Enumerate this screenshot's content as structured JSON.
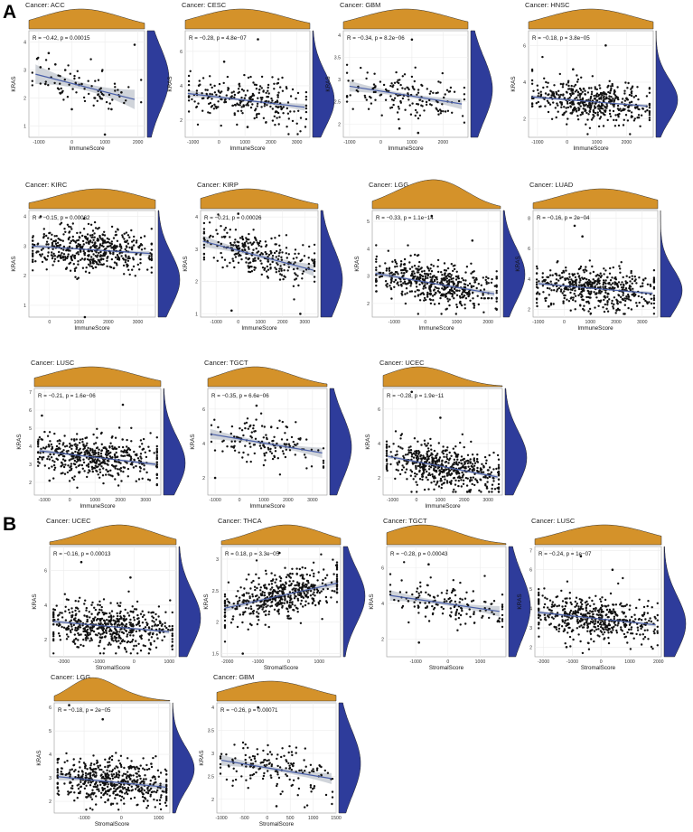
{
  "figure": {
    "colors": {
      "density_top": "#D4922A",
      "density_right": "#2E3C9B",
      "fit_line": "#4A5FA8",
      "ci_band": "#C8CCD3",
      "points": "#111111",
      "plot_border": "#9a9a9a"
    }
  },
  "chart_data": [
    {
      "type": "scatter",
      "section": "A",
      "title": "Cancer: ACC",
      "stat": "R = −0.42, p = 0.00015",
      "xlabel": "ImmuneScore",
      "ylabel": "KRAS",
      "xlim": [
        -1300,
        2200
      ],
      "ylim": [
        0.6,
        4.4
      ],
      "xticks": [
        -1000,
        0,
        1000,
        2000
      ],
      "yticks": [
        1,
        2,
        3,
        4
      ],
      "fit": [
        [
          -1100,
          2.85
        ],
        [
          1900,
          1.95
        ]
      ],
      "ci": 0.35,
      "n": 78,
      "seed": 11,
      "points": [
        [
          -1050,
          3.4
        ],
        [
          -950,
          3.1
        ],
        [
          -800,
          2.5
        ],
        [
          -700,
          3.6
        ],
        [
          -500,
          3.2
        ],
        [
          -300,
          2.2
        ],
        [
          -200,
          3.0
        ],
        [
          0,
          1.6
        ],
        [
          300,
          2.5
        ],
        [
          700,
          2.0
        ],
        [
          1000,
          0.7
        ],
        [
          1200,
          1.6
        ],
        [
          1500,
          2.2
        ],
        [
          1900,
          3.9
        ]
      ],
      "top_peaks": [
        [
          0.45,
          1.0,
          0.35
        ]
      ],
      "right_peaks": [
        [
          0.55,
          1.0,
          0.3
        ]
      ]
    },
    {
      "type": "scatter",
      "section": "A",
      "title": "Cancer: CESC",
      "stat": "R = −0.28, p = 4.8e−07",
      "xlabel": "ImmuneScore",
      "ylabel": "KRAS",
      "xlim": [
        -1300,
        3500
      ],
      "ylim": [
        1.0,
        7.2
      ],
      "xticks": [
        -1000,
        0,
        1000,
        2000,
        3000
      ],
      "yticks": [
        2,
        4,
        6
      ],
      "fit": [
        [
          -1200,
          3.55
        ],
        [
          3300,
          2.75
        ]
      ],
      "ci": 0.2,
      "n": 260,
      "seed": 22,
      "points": [
        [
          1500,
          6.7
        ],
        [
          200,
          5.4
        ],
        [
          1100,
          1.6
        ]
      ],
      "top_peaks": [
        [
          0.45,
          1.0,
          0.35
        ]
      ],
      "right_peaks": [
        [
          0.35,
          1.0,
          0.25
        ]
      ]
    },
    {
      "type": "scatter",
      "section": "A",
      "title": "Cancer: GBM",
      "stat": "R = −0.34, p = 8.2e−06",
      "xlabel": "ImmuneScore",
      "ylabel": "KRAS",
      "xlim": [
        -1200,
        2800
      ],
      "ylim": [
        1.7,
        4.1
      ],
      "xticks": [
        -1000,
        0,
        1000,
        2000
      ],
      "yticks": [
        2.0,
        2.5,
        3.0,
        3.5,
        4.0
      ],
      "fit": [
        [
          -1000,
          2.85
        ],
        [
          2600,
          2.45
        ]
      ],
      "ci": 0.12,
      "n": 160,
      "seed": 33,
      "points": [
        [
          1000,
          3.9
        ],
        [
          1200,
          1.8
        ],
        [
          600,
          1.9
        ]
      ],
      "top_peaks": [
        [
          0.5,
          1.0,
          0.35
        ]
      ],
      "right_peaks": [
        [
          0.45,
          1.0,
          0.3
        ]
      ]
    },
    {
      "type": "scatter",
      "section": "A",
      "title": "Cancer: HNSC",
      "stat": "R = −0.18, p = 3.8e−05",
      "xlabel": "ImmuneScore",
      "ylabel": "KRAS",
      "xlim": [
        -1300,
        2900
      ],
      "ylim": [
        1.0,
        6.8
      ],
      "xticks": [
        -1000,
        0,
        1000,
        2000
      ],
      "yticks": [
        2,
        4,
        6
      ],
      "fit": [
        [
          -1200,
          3.2
        ],
        [
          2700,
          2.7
        ]
      ],
      "ci": 0.1,
      "n": 480,
      "seed": 44,
      "points": [
        [
          1300,
          6.0
        ],
        [
          200,
          4.7
        ]
      ],
      "top_peaks": [
        [
          0.5,
          1.0,
          0.35
        ]
      ],
      "right_peaks": [
        [
          0.35,
          1.0,
          0.2
        ]
      ]
    },
    {
      "type": "scatter",
      "section": "A",
      "title": "Cancer: KIRC",
      "stat": "R = −0.15, p = 0.00062",
      "xlabel": "ImmuneScore",
      "ylabel": "KRAS",
      "xlim": [
        -700,
        3600
      ],
      "ylim": [
        0.6,
        4.2
      ],
      "xticks": [
        0,
        1000,
        2000,
        3000
      ],
      "yticks": [
        1,
        2,
        3,
        4
      ],
      "fit": [
        [
          -600,
          3.0
        ],
        [
          3400,
          2.75
        ]
      ],
      "ci": 0.08,
      "n": 500,
      "seed": 55,
      "points": [
        [
          -300,
          4.0
        ],
        [
          1200,
          0.6
        ]
      ],
      "top_peaks": [
        [
          0.55,
          1.0,
          0.35
        ]
      ],
      "right_peaks": [
        [
          0.35,
          1.0,
          0.25
        ]
      ]
    },
    {
      "type": "scatter",
      "section": "A",
      "title": "Cancer: KIRP",
      "stat": "R = −0.21, p = 0.00026",
      "xlabel": "ImmuneScore",
      "ylabel": "KRAS",
      "xlim": [
        -1700,
        3600
      ],
      "ylim": [
        0.9,
        4.2
      ],
      "xticks": [
        -1000,
        0,
        1000,
        2000,
        3000
      ],
      "yticks": [
        1,
        2,
        3,
        4
      ],
      "fit": [
        [
          -1600,
          3.25
        ],
        [
          3400,
          2.35
        ]
      ],
      "ci": 0.18,
      "n": 290,
      "seed": 66,
      "points": [
        [
          0,
          4.1
        ],
        [
          2800,
          1.0
        ],
        [
          -300,
          1.1
        ]
      ],
      "top_peaks": [
        [
          0.4,
          1.0,
          0.35
        ]
      ],
      "right_peaks": [
        [
          0.35,
          1.0,
          0.3
        ]
      ]
    },
    {
      "type": "scatter",
      "section": "A",
      "title": "Cancer: LGG",
      "stat": "R = −0.33, p = 1.1e−14",
      "xlabel": "ImmuneScore",
      "ylabel": "KRAS",
      "xlim": [
        -1700,
        2400
      ],
      "ylim": [
        1.5,
        5.4
      ],
      "xticks": [
        -1000,
        0,
        1000,
        2000
      ],
      "yticks": [
        2,
        3,
        4,
        5
      ],
      "fit": [
        [
          -1600,
          3.1
        ],
        [
          2200,
          2.35
        ]
      ],
      "ci": 0.1,
      "n": 520,
      "seed": 77,
      "points": [
        [
          200,
          5.2
        ],
        [
          1500,
          4.3
        ]
      ],
      "top_peaks": [
        [
          0.35,
          1.0,
          0.25
        ],
        [
          0.6,
          0.7,
          0.2
        ]
      ],
      "right_peaks": [
        [
          0.4,
          1.0,
          0.25
        ]
      ]
    },
    {
      "type": "scatter",
      "section": "A",
      "title": "Cancer: LUAD",
      "stat": "R = −0.16, p = 2e−04",
      "xlabel": "ImmuneScore",
      "ylabel": "KRAS",
      "xlim": [
        -1200,
        3600
      ],
      "ylim": [
        1.5,
        8.5
      ],
      "xticks": [
        -1000,
        0,
        1000,
        2000,
        3000
      ],
      "yticks": [
        2,
        4,
        6,
        8
      ],
      "fit": [
        [
          -1000,
          3.7
        ],
        [
          3400,
          3.05
        ]
      ],
      "ci": 0.12,
      "n": 500,
      "seed": 88,
      "points": [
        [
          400,
          7.5
        ],
        [
          700,
          6.8
        ],
        [
          -600,
          2.2
        ]
      ],
      "top_peaks": [
        [
          0.55,
          1.0,
          0.35
        ]
      ],
      "right_peaks": [
        [
          0.25,
          1.0,
          0.2
        ]
      ]
    },
    {
      "type": "scatter",
      "section": "A",
      "title": "Cancer: LUSC",
      "stat": "R = −0.21, p = 1.6e−06",
      "xlabel": "ImmuneScore",
      "ylabel": "KRAS",
      "xlim": [
        -1400,
        3600
      ],
      "ylim": [
        1.3,
        7.2
      ],
      "xticks": [
        -1000,
        0,
        1000,
        2000,
        3000
      ],
      "yticks": [
        2,
        3,
        4,
        5,
        6,
        7
      ],
      "fit": [
        [
          -1200,
          3.75
        ],
        [
          3400,
          3.0
        ]
      ],
      "ci": 0.12,
      "n": 500,
      "seed": 99,
      "points": [
        [
          -1100,
          5.7
        ],
        [
          2100,
          6.3
        ],
        [
          -800,
          2.1
        ]
      ],
      "top_peaks": [
        [
          0.45,
          1.0,
          0.35
        ]
      ],
      "right_peaks": [
        [
          0.3,
          1.0,
          0.25
        ]
      ]
    },
    {
      "type": "scatter",
      "section": "A",
      "title": "Cancer: TGCT",
      "stat": "R = −0.35, p = 6.6e−06",
      "xlabel": "ImmuneScore",
      "ylabel": "KRAS",
      "xlim": [
        -1300,
        3600
      ],
      "ylim": [
        1.0,
        7.2
      ],
      "xticks": [
        -1000,
        0,
        1000,
        2000,
        3000
      ],
      "yticks": [
        2,
        4,
        6
      ],
      "fit": [
        [
          -1200,
          4.55
        ],
        [
          3400,
          3.45
        ]
      ],
      "ci": 0.3,
      "n": 150,
      "seed": 111,
      "points": [
        [
          700,
          6.2
        ],
        [
          -1000,
          2.0
        ]
      ],
      "top_peaks": [
        [
          0.4,
          1.0,
          0.3
        ]
      ],
      "right_peaks": [
        [
          0.45,
          1.0,
          0.3
        ]
      ]
    },
    {
      "type": "scatter",
      "section": "A",
      "title": "Cancer: UCEC",
      "stat": "R = −0.28, p = 1.9e−11",
      "xlabel": "ImmuneScore",
      "ylabel": "KRAS",
      "xlim": [
        -1400,
        3600
      ],
      "ylim": [
        1.0,
        7.2
      ],
      "xticks": [
        -1000,
        0,
        1000,
        2000,
        3000
      ],
      "yticks": [
        2,
        4,
        6
      ],
      "fit": [
        [
          -1200,
          3.25
        ],
        [
          3400,
          2.05
        ]
      ],
      "ci": 0.12,
      "n": 540,
      "seed": 122,
      "points": [
        [
          -200,
          7.0
        ],
        [
          1000,
          5.5
        ]
      ],
      "top_peaks": [
        [
          0.3,
          1.0,
          0.28
        ]
      ],
      "right_peaks": [
        [
          0.35,
          1.0,
          0.25
        ]
      ]
    },
    {
      "type": "scatter",
      "section": "B",
      "title": "Cancer: UCEC",
      "stat": "R = −0.16, p = 0.00013",
      "xlabel": "StromalScore",
      "ylabel": "KRAS",
      "xlim": [
        -2400,
        1200
      ],
      "ylim": [
        1.0,
        7.4
      ],
      "xticks": [
        -2000,
        -1000,
        0,
        1000
      ],
      "yticks": [
        2,
        4,
        6
      ],
      "fit": [
        [
          -2300,
          3.05
        ],
        [
          1000,
          2.45
        ]
      ],
      "ci": 0.12,
      "n": 540,
      "seed": 133,
      "points": [
        [
          -1500,
          6.5
        ],
        [
          -100,
          5.6
        ]
      ],
      "top_peaks": [
        [
          0.55,
          1.0,
          0.28
        ]
      ],
      "right_peaks": [
        [
          0.35,
          1.0,
          0.25
        ]
      ]
    },
    {
      "type": "scatter",
      "section": "B",
      "title": "Cancer: THCA",
      "stat": "R = 0.18, p = 3.3e−05",
      "xlabel": "StromalScore",
      "ylabel": "KRAS",
      "xlim": [
        -2200,
        1700
      ],
      "ylim": [
        1.45,
        3.2
      ],
      "xticks": [
        -2000,
        -1000,
        0,
        1000
      ],
      "yticks": [
        1.5,
        2.0,
        2.5,
        3.0
      ],
      "fit": [
        [
          -2100,
          2.22
        ],
        [
          1600,
          2.62
        ]
      ],
      "ci": 0.06,
      "n": 500,
      "seed": 144,
      "points": [
        [
          -300,
          3.1
        ],
        [
          -1500,
          1.5
        ]
      ],
      "top_peaks": [
        [
          0.55,
          1.0,
          0.3
        ]
      ],
      "right_peaks": [
        [
          0.55,
          1.0,
          0.25
        ]
      ]
    },
    {
      "type": "scatter",
      "section": "B",
      "title": "Cancer: TGCT",
      "stat": "R = −0.28, p = 0.00043",
      "xlabel": "StromalScore",
      "ylabel": "KRAS",
      "xlim": [
        -1900,
        1800
      ],
      "ylim": [
        1.0,
        7.2
      ],
      "xticks": [
        -1000,
        0,
        1000
      ],
      "yticks": [
        2,
        4,
        6
      ],
      "fit": [
        [
          -1800,
          4.45
        ],
        [
          1600,
          3.55
        ]
      ],
      "ci": 0.3,
      "n": 150,
      "seed": 155,
      "points": [
        [
          -600,
          6.2
        ],
        [
          -900,
          1.8
        ]
      ],
      "top_peaks": [
        [
          0.3,
          1.0,
          0.3
        ]
      ],
      "right_peaks": [
        [
          0.45,
          1.0,
          0.3
        ]
      ]
    },
    {
      "type": "scatter",
      "section": "B",
      "title": "Cancer: LUSC",
      "stat": "R = −0.24, p = 1e−07",
      "xlabel": "StromalScore",
      "ylabel": "KRAS",
      "xlim": [
        -2300,
        2100
      ],
      "ylim": [
        1.5,
        7.2
      ],
      "xticks": [
        -2000,
        -1000,
        0,
        1000,
        2000
      ],
      "yticks": [
        2,
        3,
        4,
        5,
        6,
        7
      ],
      "fit": [
        [
          -2200,
          3.8
        ],
        [
          1900,
          3.15
        ]
      ],
      "ci": 0.1,
      "n": 500,
      "seed": 166,
      "points": [
        [
          -700,
          6.7
        ],
        [
          400,
          6.0
        ],
        [
          -1200,
          2.0
        ]
      ],
      "top_peaks": [
        [
          0.55,
          1.0,
          0.35
        ]
      ],
      "right_peaks": [
        [
          0.3,
          1.0,
          0.25
        ]
      ]
    },
    {
      "type": "scatter",
      "section": "B",
      "title": "Cancer: LGG",
      "stat": "R = −0.18, p = 2e−05",
      "xlabel": "StromalScore",
      "ylabel": "KRAS",
      "xlim": [
        -1800,
        1300
      ],
      "ylim": [
        1.5,
        6.2
      ],
      "xticks": [
        -1000,
        0,
        1000
      ],
      "yticks": [
        2,
        3,
        4,
        5,
        6
      ],
      "fit": [
        [
          -1700,
          3.05
        ],
        [
          1200,
          2.6
        ]
      ],
      "ci": 0.15,
      "n": 520,
      "seed": 177,
      "points": [
        [
          -1400,
          6.1
        ],
        [
          -500,
          5.5
        ],
        [
          800,
          3.6
        ]
      ],
      "top_peaks": [
        [
          0.3,
          1.0,
          0.18
        ],
        [
          0.55,
          0.35,
          0.2
        ]
      ],
      "right_peaks": [
        [
          0.4,
          1.0,
          0.2
        ]
      ]
    },
    {
      "type": "scatter",
      "section": "B",
      "title": "Cancer: GBM",
      "stat": "R = −0.26, p = 0.00071",
      "xlabel": "StromalScore",
      "ylabel": "KRAS",
      "xlim": [
        -1100,
        1500
      ],
      "ylim": [
        1.7,
        4.1
      ],
      "xticks": [
        -1000,
        -500,
        0,
        500,
        1000,
        1500
      ],
      "yticks": [
        2.0,
        2.5,
        3.0,
        3.5,
        4.0
      ],
      "fit": [
        [
          -1000,
          2.85
        ],
        [
          1400,
          2.45
        ]
      ],
      "ci": 0.12,
      "n": 160,
      "seed": 188,
      "points": [
        [
          -200,
          4.0
        ],
        [
          200,
          1.85
        ]
      ],
      "top_peaks": [
        [
          0.45,
          1.0,
          0.35
        ]
      ],
      "right_peaks": [
        [
          0.45,
          1.0,
          0.3
        ]
      ]
    }
  ],
  "labels": {
    "section_a": "A",
    "section_b": "B"
  }
}
